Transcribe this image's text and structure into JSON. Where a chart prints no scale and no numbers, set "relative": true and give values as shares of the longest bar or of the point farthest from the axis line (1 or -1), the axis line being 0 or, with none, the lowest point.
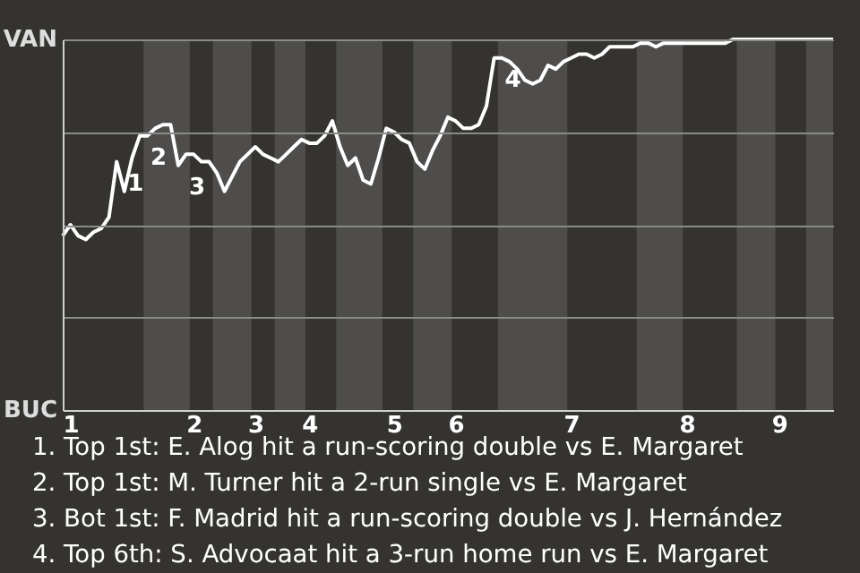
{
  "chart_data": {
    "type": "line",
    "relative": true,
    "categories": [
      null,
      "1",
      null,
      null,
      null,
      null,
      null,
      null,
      null,
      null,
      null,
      null,
      null,
      null,
      null,
      null,
      null,
      "2",
      null,
      null,
      null,
      null,
      null,
      null,
      null,
      "3",
      null,
      null,
      null,
      null,
      null,
      null,
      "4",
      null,
      null,
      null,
      null,
      null,
      null,
      null,
      null,
      null,
      null,
      "5",
      null,
      null,
      null,
      null,
      null,
      null,
      null,
      "6",
      null,
      null,
      null,
      null,
      null,
      null,
      null,
      null,
      null,
      null,
      null,
      null,
      null,
      null,
      "7",
      null,
      null,
      null,
      null,
      null,
      null,
      null,
      null,
      null,
      null,
      null,
      null,
      null,
      null,
      "8",
      null,
      null,
      null,
      null,
      null,
      null,
      null,
      null,
      null,
      null,
      null,
      "9",
      null,
      null,
      null,
      null,
      null,
      null,
      null
    ],
    "series": [
      {
        "color": "#ffffff",
        "values": [
          0.47,
          0.5,
          0.47,
          0.46,
          0.48,
          0.49,
          0.52,
          0.67,
          0.59,
          0.68,
          0.74,
          0.74,
          0.76,
          0.77,
          0.77,
          0.66,
          0.69,
          0.69,
          0.67,
          0.67,
          0.64,
          0.59,
          0.63,
          0.67,
          0.69,
          0.71,
          0.69,
          0.68,
          0.67,
          0.69,
          0.71,
          0.73,
          0.72,
          0.72,
          0.74,
          0.78,
          0.71,
          0.66,
          0.68,
          0.62,
          0.61,
          0.68,
          0.76,
          0.75,
          0.73,
          0.72,
          0.67,
          0.65,
          0.7,
          0.74,
          0.79,
          0.78,
          0.76,
          0.76,
          0.77,
          0.82,
          0.95,
          0.95,
          0.94,
          0.92,
          0.89,
          0.88,
          0.89,
          0.93,
          0.92,
          0.94,
          0.95,
          0.96,
          0.96,
          0.95,
          0.96,
          0.98,
          0.98,
          0.98,
          0.98,
          0.99,
          0.99,
          0.98,
          0.99,
          0.99,
          0.99,
          0.99,
          0.99,
          0.99,
          0.99,
          0.99,
          0.99,
          1.0,
          1.0,
          1.0,
          1.0,
          1.0,
          1.0,
          1.0,
          1.0,
          1.0,
          1.0,
          1.0,
          1.0,
          1.0,
          1.0
        ],
        "name": null
      }
    ],
    "grid": "y",
    "marker": "none",
    "line_style": "solid",
    "annotations": [
      {
        "text": "1",
        "y": 0.67
      },
      {
        "text": "2",
        "y": 0.74
      },
      {
        "text": "3",
        "y": 0.66
      },
      {
        "text": "4",
        "y": 0.95
      },
      "VAN",
      "BUC",
      "1. Top 1st: E. Alog hit a run-scoring double vs E. Margaret",
      "2. Top 1st: M. Turner hit a 2-run single vs E. Margaret",
      "3. Bot 1st: F. Madrid hit a run-scoring double vs J. Hernández",
      "4. Top 6th: S. Advocaat hit a 3-run home run vs E. Margaret"
    ]
  }
}
